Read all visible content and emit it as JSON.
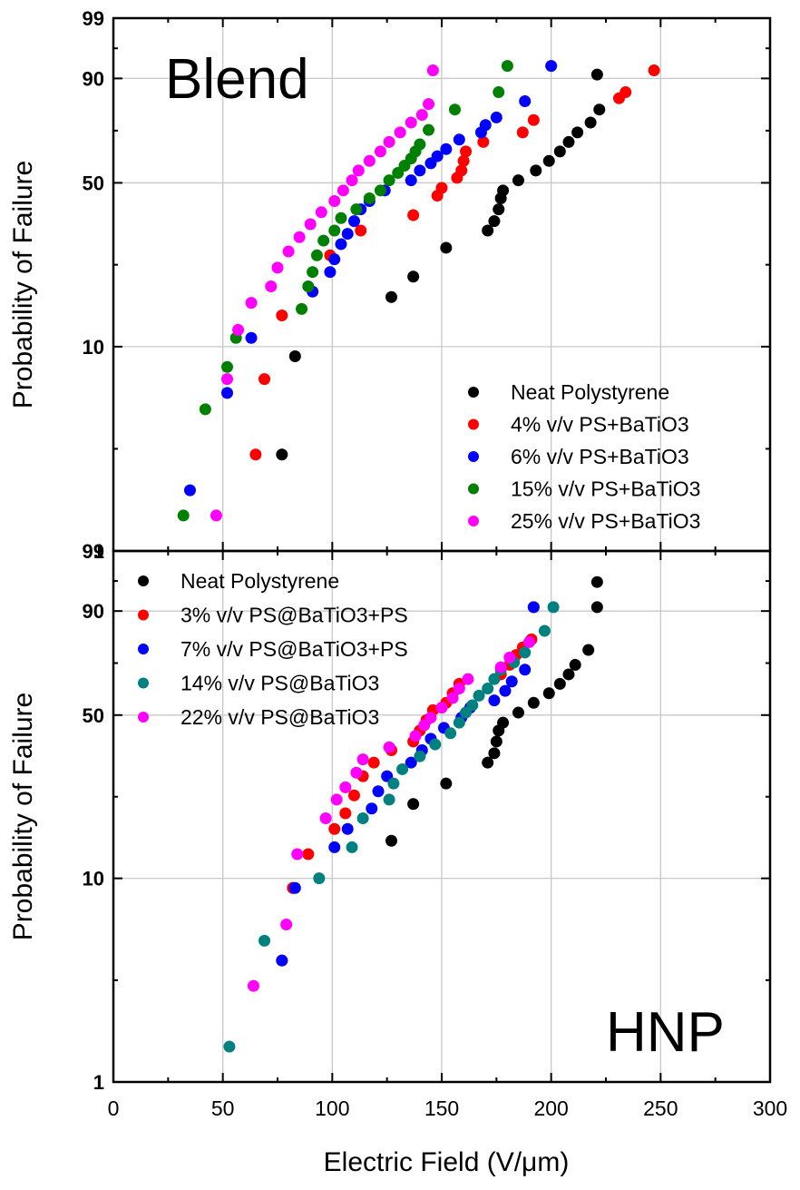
{
  "chart_data": [
    {
      "type": "scatter",
      "panel_label": "Blend",
      "ylabel": "Probability of Failure",
      "xlabel": "",
      "xlim": [
        0,
        300
      ],
      "y_scale": "weibull-probability",
      "y_ticks": [
        "1",
        "10",
        "50",
        "90",
        "99"
      ],
      "legend_position": "lower-right",
      "series": [
        {
          "name": "Neat Polystyrene",
          "color": "#000000",
          "points": [
            [
              77,
              3
            ],
            [
              83,
              9
            ],
            [
              127,
              17
            ],
            [
              137,
              21
            ],
            [
              152,
              28
            ],
            [
              171,
              33
            ],
            [
              174,
              36
            ],
            [
              176,
              40
            ],
            [
              177,
              44
            ],
            [
              178,
              47
            ],
            [
              185,
              51
            ],
            [
              193,
              55
            ],
            [
              199,
              59
            ],
            [
              204,
              63
            ],
            [
              208,
              67
            ],
            [
              212,
              71
            ],
            [
              218,
              75
            ],
            [
              222,
              80
            ],
            [
              221,
              91
            ]
          ]
        },
        {
          "name": "4% v/v PS+BaTiO3",
          "color": "#ff0000",
          "points": [
            [
              65,
              3
            ],
            [
              69,
              7
            ],
            [
              77,
              14
            ],
            [
              99,
              26
            ],
            [
              113,
              33
            ],
            [
              137,
              38
            ],
            [
              148,
              45
            ],
            [
              150,
              48
            ],
            [
              157,
              52
            ],
            [
              159,
              55
            ],
            [
              160,
              59
            ],
            [
              161,
              63
            ],
            [
              169,
              67
            ],
            [
              187,
              71
            ],
            [
              192,
              76
            ],
            [
              231,
              84
            ],
            [
              234,
              86
            ],
            [
              247,
              92
            ]
          ]
        },
        {
          "name": "6% v/v PS+BaTiO3",
          "color": "#0000ff",
          "points": [
            [
              35,
              2
            ],
            [
              52,
              6
            ],
            [
              63,
              11
            ],
            [
              91,
              18
            ],
            [
              99,
              22
            ],
            [
              101,
              25
            ],
            [
              104,
              29
            ],
            [
              107,
              32
            ],
            [
              110,
              36
            ],
            [
              113,
              40
            ],
            [
              117,
              43
            ],
            [
              124,
              47
            ],
            [
              136,
              51
            ],
            [
              140,
              55
            ],
            [
              145,
              58
            ],
            [
              148,
              61
            ],
            [
              152,
              64
            ],
            [
              158,
              68
            ],
            [
              168,
              71
            ],
            [
              170,
              74
            ],
            [
              175,
              77
            ],
            [
              188,
              83
            ],
            [
              200,
              93
            ]
          ]
        },
        {
          "name": "15% v/v PS+BaTiO3",
          "color": "#008000",
          "points": [
            [
              32,
              1.5
            ],
            [
              42,
              5
            ],
            [
              52,
              8
            ],
            [
              56,
              11
            ],
            [
              86,
              15
            ],
            [
              89,
              19
            ],
            [
              91,
              22
            ],
            [
              93,
              26
            ],
            [
              96,
              30
            ],
            [
              101,
              33
            ],
            [
              104,
              37
            ],
            [
              111,
              40
            ],
            [
              117,
              44
            ],
            [
              122,
              47
            ],
            [
              126,
              51
            ],
            [
              130,
              54
            ],
            [
              133,
              57
            ],
            [
              136,
              60
            ],
            [
              138,
              63
            ],
            [
              140,
              66
            ],
            [
              144,
              72
            ],
            [
              156,
              80
            ],
            [
              176,
              86
            ],
            [
              180,
              93
            ]
          ]
        },
        {
          "name": "25% v/v PS+BaTiO3",
          "color": "#ff00ff",
          "points": [
            [
              47,
              1.5
            ],
            [
              52,
              7
            ],
            [
              57,
              12
            ],
            [
              63,
              16
            ],
            [
              72,
              19
            ],
            [
              75,
              23
            ],
            [
              80,
              27
            ],
            [
              85,
              31
            ],
            [
              90,
              35
            ],
            [
              95,
              39
            ],
            [
              101,
              43
            ],
            [
              105,
              47
            ],
            [
              109,
              51
            ],
            [
              112,
              55
            ],
            [
              117,
              59
            ],
            [
              122,
              63
            ],
            [
              126,
              67
            ],
            [
              131,
              71
            ],
            [
              136,
              75
            ],
            [
              141,
              78
            ],
            [
              144,
              82
            ],
            [
              146,
              92
            ]
          ]
        }
      ]
    },
    {
      "type": "scatter",
      "panel_label": "HNP",
      "ylabel": "Probability of Failure",
      "xlabel": "Electric Field (V/μm)",
      "xlim": [
        0,
        300
      ],
      "x_ticks": [
        "0",
        "50",
        "100",
        "150",
        "200",
        "250",
        "300"
      ],
      "y_scale": "weibull-probability",
      "y_ticks": [
        "1",
        "10",
        "50",
        "90",
        "99"
      ],
      "legend_position": "top-left",
      "series": [
        {
          "name": "Neat Polystyrene",
          "color": "#000000",
          "points": [
            [
              82,
              9
            ],
            [
              127,
              15
            ],
            [
              137,
              22
            ],
            [
              152,
              27
            ],
            [
              171,
              33
            ],
            [
              174,
              36
            ],
            [
              175,
              40
            ],
            [
              176,
              44
            ],
            [
              178,
              47
            ],
            [
              185,
              51
            ],
            [
              192,
              55
            ],
            [
              199,
              59
            ],
            [
              204,
              63
            ],
            [
              208,
              67
            ],
            [
              211,
              71
            ],
            [
              217,
              77
            ],
            [
              221,
              91
            ],
            [
              221,
              96
            ]
          ]
        },
        {
          "name": "3% v/v PS@BaTiO3+PS",
          "color": "#ff0000",
          "points": [
            [
              77,
              4
            ],
            [
              82,
              9
            ],
            [
              89,
              13
            ],
            [
              101,
              17
            ],
            [
              106,
              20
            ],
            [
              110,
              24
            ],
            [
              114,
              29
            ],
            [
              119,
              33
            ],
            [
              127,
              37
            ],
            [
              137,
              40
            ],
            [
              140,
              44
            ],
            [
              143,
              48
            ],
            [
              146,
              52
            ],
            [
              152,
              55
            ],
            [
              155,
              59
            ],
            [
              158,
              63
            ],
            [
              177,
              67
            ],
            [
              181,
              71
            ],
            [
              184,
              75
            ],
            [
              187,
              78
            ],
            [
              191,
              81
            ],
            [
              192,
              91
            ]
          ]
        },
        {
          "name": "7% v/v PS@BaTiO3+PS",
          "color": "#0000ff",
          "points": [
            [
              77,
              4
            ],
            [
              83,
              9
            ],
            [
              101,
              14
            ],
            [
              107,
              17
            ],
            [
              118,
              21
            ],
            [
              121,
              25
            ],
            [
              125,
              29
            ],
            [
              136,
              33
            ],
            [
              141,
              37
            ],
            [
              145,
              41
            ],
            [
              151,
              45
            ],
            [
              159,
              49
            ],
            [
              163,
              53
            ],
            [
              174,
              56
            ],
            [
              179,
              60
            ],
            [
              182,
              64
            ],
            [
              188,
              69
            ],
            [
              192,
              91
            ]
          ]
        },
        {
          "name": "14% v/v PS@BaTiO3",
          "color": "#008080",
          "points": [
            [
              53,
              1.5
            ],
            [
              69,
              5
            ],
            [
              94,
              10
            ],
            [
              109,
              14
            ],
            [
              114,
              19
            ],
            [
              126,
              23
            ],
            [
              128,
              27
            ],
            [
              132,
              31
            ],
            [
              140,
              35
            ],
            [
              147,
              39
            ],
            [
              154,
              43
            ],
            [
              158,
              47
            ],
            [
              161,
              51
            ],
            [
              164,
              54
            ],
            [
              167,
              58
            ],
            [
              171,
              61
            ],
            [
              174,
              65
            ],
            [
              177,
              69
            ],
            [
              183,
              72
            ],
            [
              188,
              76
            ],
            [
              197,
              84
            ],
            [
              201,
              91
            ]
          ]
        },
        {
          "name": "22% v/v PS@BaTiO3",
          "color": "#ff00ff",
          "points": [
            [
              64,
              3
            ],
            [
              79,
              6
            ],
            [
              84,
              13
            ],
            [
              97,
              19
            ],
            [
              102,
              23
            ],
            [
              106,
              26
            ],
            [
              111,
              30
            ],
            [
              114,
              34
            ],
            [
              126,
              38
            ],
            [
              138,
              42
            ],
            [
              142,
              46
            ],
            [
              145,
              49
            ],
            [
              150,
              53
            ],
            [
              155,
              57
            ],
            [
              158,
              61
            ],
            [
              162,
              65
            ],
            [
              177,
              70
            ],
            [
              181,
              74
            ],
            [
              190,
              80
            ]
          ]
        }
      ]
    }
  ]
}
